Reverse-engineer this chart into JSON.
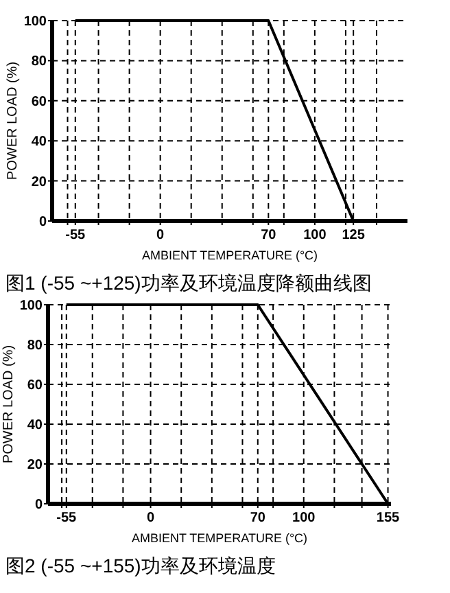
{
  "chart_data": [
    {
      "type": "line",
      "title": "图1 (-55 ~+125)功率及环境温度降额曲线图",
      "xlabel": "AMBIENT TEMPERATURE (°C)",
      "ylabel": "POWER LOAD (%)",
      "xlim": [
        -70,
        160
      ],
      "ylim": [
        0,
        100
      ],
      "xticks": [
        {
          "value": -60,
          "label": null
        },
        -55,
        {
          "value": -40,
          "label": null
        },
        {
          "value": -20,
          "label": null
        },
        0,
        {
          "value": 20,
          "label": null
        },
        {
          "value": 40,
          "label": null
        },
        {
          "value": 60,
          "label": null
        },
        70,
        {
          "value": 80,
          "label": null
        },
        100,
        {
          "value": 120,
          "label": null
        },
        125,
        {
          "value": 140,
          "label": null
        }
      ],
      "yticks": [
        0,
        20,
        40,
        60,
        80,
        100
      ],
      "grid": true,
      "line_style": "solid",
      "series": [
        {
          "color": "#000000",
          "x": [
            -55,
            70,
            125
          ],
          "values": [
            100,
            100,
            0
          ]
        }
      ]
    },
    {
      "type": "line",
      "title": "图2 (-55 ~+155)功率及环境温度",
      "xlabel": "AMBIENT TEMPERATURE (°C)",
      "ylabel": "POWER LOAD (%)",
      "xlim": [
        -67,
        157
      ],
      "ylim": [
        0,
        100
      ],
      "xticks": [
        {
          "value": -58,
          "label": null
        },
        -55,
        {
          "value": -38,
          "label": null
        },
        {
          "value": -18,
          "label": null
        },
        0,
        {
          "value": 20,
          "label": null
        },
        {
          "value": 40,
          "label": null
        },
        {
          "value": 60,
          "label": null
        },
        70,
        {
          "value": 80,
          "label": null
        },
        100,
        {
          "value": 120,
          "label": null
        },
        {
          "value": 138,
          "label": null
        },
        155
      ],
      "yticks": [
        0,
        20,
        40,
        60,
        80,
        100
      ],
      "grid": true,
      "line_style": "solid",
      "series": [
        {
          "color": "#000000",
          "x": [
            -55,
            70,
            155
          ],
          "values": [
            100,
            100,
            0
          ]
        }
      ]
    }
  ]
}
